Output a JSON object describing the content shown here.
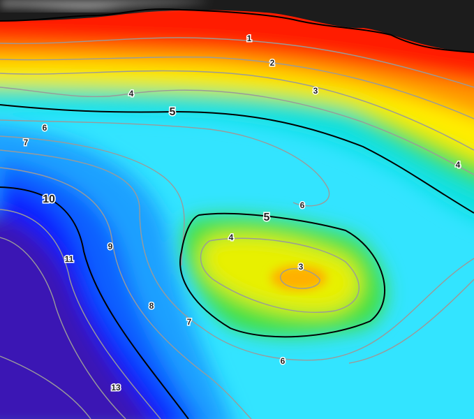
{
  "contour_labels": [
    1,
    2,
    3,
    4,
    5,
    6,
    7,
    4,
    6,
    10,
    5,
    4,
    9,
    11,
    3,
    8,
    7,
    6,
    13
  ]
}
